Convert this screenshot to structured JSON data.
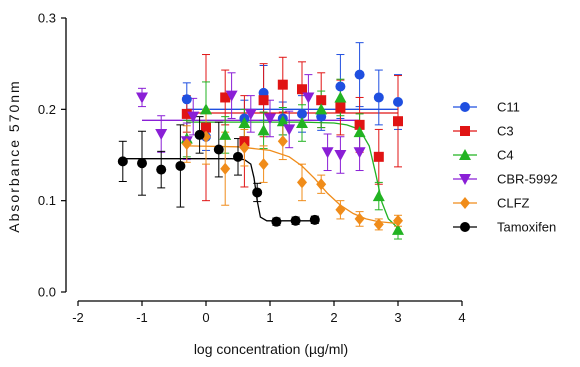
{
  "chart_data": {
    "type": "scatter",
    "xlabel": "log concentration (µg/ml)",
    "ylabel": "Absorbance 570nm",
    "xlim": [
      -2,
      4
    ],
    "ylim": [
      0.0,
      0.3
    ],
    "x_ticks": [
      "-2",
      "-1",
      "0",
      "1",
      "2",
      "3",
      "4"
    ],
    "y_ticks": [
      "0.0",
      "0.1",
      "0.2",
      "0.3"
    ],
    "legend_position": "right",
    "series": [
      {
        "name": "C11",
        "color": "#1f4fe0",
        "marker": "circle",
        "points": [
          {
            "x": -0.3,
            "y": 0.211,
            "err": 0.018
          },
          {
            "x": 0.0,
            "y": 0.17,
            "err": 0.015
          },
          {
            "x": 0.6,
            "y": 0.19,
            "err": 0.02
          },
          {
            "x": 0.9,
            "y": 0.218,
            "err": 0.03
          },
          {
            "x": 1.2,
            "y": 0.19,
            "err": 0.018
          },
          {
            "x": 1.5,
            "y": 0.195,
            "err": 0.02
          },
          {
            "x": 1.8,
            "y": 0.192,
            "err": 0.015
          },
          {
            "x": 2.1,
            "y": 0.225,
            "err": 0.035
          },
          {
            "x": 2.4,
            "y": 0.238,
            "err": 0.035
          },
          {
            "x": 2.7,
            "y": 0.213,
            "err": 0.03
          },
          {
            "x": 3.0,
            "y": 0.208,
            "err": 0.03
          }
        ],
        "fit": [
          [
            -0.3,
            0.2
          ],
          [
            3.0,
            0.2
          ]
        ]
      },
      {
        "name": "C3",
        "color": "#e01414",
        "marker": "square",
        "points": [
          {
            "x": -0.3,
            "y": 0.195,
            "err": 0.02
          },
          {
            "x": 0.0,
            "y": 0.18,
            "err": 0.08
          },
          {
            "x": 0.3,
            "y": 0.213,
            "err": 0.03
          },
          {
            "x": 0.6,
            "y": 0.165,
            "err": 0.05
          },
          {
            "x": 0.9,
            "y": 0.21,
            "err": 0.04
          },
          {
            "x": 1.2,
            "y": 0.227,
            "err": 0.03
          },
          {
            "x": 1.5,
            "y": 0.222,
            "err": 0.03
          },
          {
            "x": 1.8,
            "y": 0.21,
            "err": 0.03
          },
          {
            "x": 2.1,
            "y": 0.202,
            "err": 0.03
          },
          {
            "x": 2.4,
            "y": 0.183,
            "err": 0.03
          },
          {
            "x": 2.7,
            "y": 0.148,
            "err": 0.03
          },
          {
            "x": 3.0,
            "y": 0.187,
            "err": 0.05
          }
        ],
        "fit": [
          [
            -0.3,
            0.196
          ],
          [
            3.0,
            0.196
          ]
        ]
      },
      {
        "name": "C4",
        "color": "#22b322",
        "marker": "triangle-up",
        "points": [
          {
            "x": -0.3,
            "y": 0.168,
            "err": 0.02
          },
          {
            "x": 0.0,
            "y": 0.2,
            "err": 0.03
          },
          {
            "x": 0.3,
            "y": 0.172,
            "err": 0.02
          },
          {
            "x": 0.6,
            "y": 0.185,
            "err": 0.015
          },
          {
            "x": 0.9,
            "y": 0.177,
            "err": 0.02
          },
          {
            "x": 1.2,
            "y": 0.187,
            "err": 0.015
          },
          {
            "x": 1.5,
            "y": 0.185,
            "err": 0.02
          },
          {
            "x": 1.8,
            "y": 0.2,
            "err": 0.02
          },
          {
            "x": 2.1,
            "y": 0.213,
            "err": 0.02
          },
          {
            "x": 2.4,
            "y": 0.175,
            "err": 0.02
          },
          {
            "x": 2.7,
            "y": 0.105,
            "err": 0.015
          },
          {
            "x": 3.0,
            "y": 0.068,
            "err": 0.01
          }
        ],
        "fit": [
          [
            -0.3,
            0.186
          ],
          [
            0.5,
            0.186
          ],
          [
            1.0,
            0.186
          ],
          [
            1.5,
            0.186
          ],
          [
            2.0,
            0.185
          ],
          [
            2.2,
            0.183
          ],
          [
            2.4,
            0.178
          ],
          [
            2.55,
            0.16
          ],
          [
            2.65,
            0.13
          ],
          [
            2.75,
            0.098
          ],
          [
            2.85,
            0.08
          ],
          [
            3.0,
            0.07
          ]
        ]
      },
      {
        "name": "CBR-5992",
        "color": "#8a1fd6",
        "marker": "triangle-down",
        "points": [
          {
            "x": -1.0,
            "y": 0.213,
            "err": 0.01
          },
          {
            "x": -0.7,
            "y": 0.173,
            "err": 0.02
          },
          {
            "x": -0.3,
            "y": 0.165,
            "err": 0.02
          },
          {
            "x": -0.2,
            "y": 0.192,
            "err": 0.02
          },
          {
            "x": 0.4,
            "y": 0.215,
            "err": 0.025
          },
          {
            "x": 0.7,
            "y": 0.195,
            "err": 0.02
          },
          {
            "x": 1.0,
            "y": 0.19,
            "err": 0.02
          },
          {
            "x": 1.3,
            "y": 0.178,
            "err": 0.02
          },
          {
            "x": 1.6,
            "y": 0.213,
            "err": 0.025
          },
          {
            "x": 1.9,
            "y": 0.153,
            "err": 0.02
          },
          {
            "x": 2.1,
            "y": 0.15,
            "err": 0.02
          },
          {
            "x": 2.4,
            "y": 0.153,
            "err": 0.02
          }
        ],
        "fit": [
          [
            -1.0,
            0.188
          ],
          [
            2.4,
            0.188
          ]
        ]
      },
      {
        "name": "CLFZ",
        "color": "#f08c1a",
        "marker": "diamond",
        "points": [
          {
            "x": -0.3,
            "y": 0.162,
            "err": 0.02
          },
          {
            "x": 0.0,
            "y": 0.17,
            "err": 0.03
          },
          {
            "x": 0.3,
            "y": 0.135,
            "err": 0.04
          },
          {
            "x": 0.6,
            "y": 0.158,
            "err": 0.02
          },
          {
            "x": 0.9,
            "y": 0.14,
            "err": 0.02
          },
          {
            "x": 1.2,
            "y": 0.165,
            "err": 0.02
          },
          {
            "x": 1.5,
            "y": 0.12,
            "err": 0.02
          },
          {
            "x": 1.8,
            "y": 0.118,
            "err": 0.01
          },
          {
            "x": 2.1,
            "y": 0.09,
            "err": 0.01
          },
          {
            "x": 2.4,
            "y": 0.08,
            "err": 0.008
          },
          {
            "x": 2.7,
            "y": 0.074,
            "err": 0.006
          },
          {
            "x": 3.0,
            "y": 0.078,
            "err": 0.006
          }
        ],
        "fit": [
          [
            -0.3,
            0.16
          ],
          [
            0.5,
            0.159
          ],
          [
            1.0,
            0.155
          ],
          [
            1.3,
            0.148
          ],
          [
            1.5,
            0.138
          ],
          [
            1.7,
            0.124
          ],
          [
            1.9,
            0.108
          ],
          [
            2.1,
            0.095
          ],
          [
            2.3,
            0.086
          ],
          [
            2.5,
            0.08
          ],
          [
            2.7,
            0.077
          ],
          [
            3.0,
            0.075
          ]
        ]
      },
      {
        "name": "Tamoxifen",
        "color": "#000000",
        "marker": "circle",
        "points": [
          {
            "x": -1.3,
            "y": 0.143,
            "err": 0.022
          },
          {
            "x": -1.0,
            "y": 0.141,
            "err": 0.035
          },
          {
            "x": -0.7,
            "y": 0.134,
            "err": 0.02
          },
          {
            "x": -0.4,
            "y": 0.138,
            "err": 0.045
          },
          {
            "x": -0.1,
            "y": 0.172,
            "err": 0.02
          },
          {
            "x": 0.2,
            "y": 0.156,
            "err": 0.03
          },
          {
            "x": 0.5,
            "y": 0.148,
            "err": 0.02
          },
          {
            "x": 0.8,
            "y": 0.109,
            "err": 0.01
          },
          {
            "x": 1.1,
            "y": 0.077,
            "err": 0.004
          },
          {
            "x": 1.4,
            "y": 0.078,
            "err": 0.004
          },
          {
            "x": 1.7,
            "y": 0.079,
            "err": 0.004
          }
        ],
        "fit": [
          [
            -1.3,
            0.146
          ],
          [
            0.4,
            0.146
          ],
          [
            0.6,
            0.145
          ],
          [
            0.7,
            0.14
          ],
          [
            0.75,
            0.125
          ],
          [
            0.8,
            0.1
          ],
          [
            0.85,
            0.082
          ],
          [
            0.95,
            0.078
          ],
          [
            1.7,
            0.078
          ]
        ]
      }
    ]
  }
}
